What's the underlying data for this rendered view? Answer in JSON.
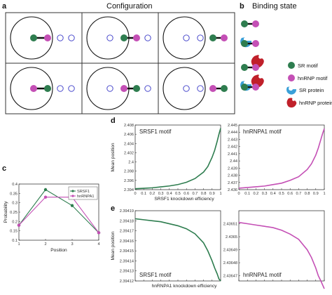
{
  "panels": {
    "a": {
      "letter": "a",
      "title": "Configuration"
    },
    "b": {
      "letter": "b",
      "title": "Binding state"
    },
    "c": {
      "letter": "c"
    },
    "d": {
      "letter": "d"
    },
    "e": {
      "letter": "e"
    }
  },
  "legend_b": {
    "sr_motif": "SR motif",
    "hnrnp_motif": "hnRNP motif",
    "sr_protein": "SR protein",
    "hnrnp_protein": "hnRNP protein"
  },
  "colors": {
    "sr": "#2e7d4f",
    "hnrnp": "#c44fb5",
    "sr_protein": "#3aa0d8",
    "hnrnp_protein": "#c0202a",
    "empty_site": "#3a3ac8",
    "frame": "#333333"
  },
  "chart_data": [
    {
      "id": "c",
      "type": "line",
      "title": "",
      "xlabel": "Position",
      "ylabel": "Probability",
      "x": [
        1,
        2,
        3,
        4
      ],
      "xticks": [
        "1",
        "2",
        "3",
        "4"
      ],
      "ylim": [
        0.1,
        0.4
      ],
      "yticks": [
        "0.1",
        "0.15",
        "0.2",
        "0.25",
        "0.3",
        "0.35",
        "0.4"
      ],
      "series": [
        {
          "name": "SRSF1",
          "values": [
            0.18,
            0.37,
            0.285,
            0.14
          ]
        },
        {
          "name": "hnRNPA1",
          "values": [
            0.18,
            0.33,
            0.33,
            0.14
          ]
        }
      ],
      "legend": "top-right"
    },
    {
      "id": "d-left",
      "type": "line",
      "inner_label": "SRSF1 motif",
      "ylabel": "Mean position",
      "xlabel": "SRSF1 knockdown efficiency",
      "xlim": [
        0,
        1
      ],
      "xticks": [
        "0",
        "0.1",
        "0.2",
        "0.3",
        "0.4",
        "0.5",
        "0.6",
        "0.7",
        "0.8",
        "0.9",
        "1"
      ],
      "ylim": [
        2.394,
        2.408
      ],
      "yticks": [
        "2.394",
        "2.396",
        "2.398",
        "2.4",
        "2.402",
        "2.404",
        "2.406",
        "2.408"
      ],
      "series": [
        {
          "x": [
            0,
            0.1,
            0.2,
            0.3,
            0.4,
            0.5,
            0.6,
            0.7,
            0.8,
            0.85,
            0.9,
            0.93,
            0.96,
            0.98,
            1.0
          ],
          "values": [
            2.3942,
            2.3943,
            2.3944,
            2.3946,
            2.3948,
            2.3951,
            2.3956,
            2.3964,
            2.3978,
            2.399,
            2.401,
            2.4025,
            2.4045,
            2.406,
            2.4073
          ]
        }
      ]
    },
    {
      "id": "d-right",
      "type": "line",
      "inner_label": "hnRNPA1 motif",
      "xlim": [
        0,
        1
      ],
      "xticks": [
        "0",
        "0.1",
        "0.2",
        "0.3",
        "0.4",
        "0.5",
        "0.6",
        "0.7",
        "0.8",
        "0.9",
        "1"
      ],
      "ylim": [
        2.436,
        2.445
      ],
      "yticks": [
        "2.436",
        "2.437",
        "2.438",
        "2.439",
        "2.44",
        "2.441",
        "2.442",
        "2.443",
        "2.444",
        "2.445"
      ],
      "series": [
        {
          "x": [
            0,
            0.1,
            0.2,
            0.3,
            0.4,
            0.5,
            0.6,
            0.7,
            0.8,
            0.85,
            0.9,
            0.93,
            0.96,
            0.98,
            1.0
          ],
          "values": [
            2.4362,
            2.4363,
            2.4364,
            2.4365,
            2.4367,
            2.4369,
            2.4373,
            2.4378,
            2.4388,
            2.4396,
            2.4408,
            2.4418,
            2.443,
            2.4438,
            2.4445
          ]
        }
      ]
    },
    {
      "id": "e-left",
      "type": "line",
      "inner_label": "SRSF1 motif",
      "ylabel": "Mean position",
      "xlabel": "hnRNPA1 knockdown efficiency",
      "xlim": [
        0,
        1
      ],
      "xticks": [
        "0",
        "0.1",
        "0.2",
        "0.3",
        "0.4",
        "0.5",
        "0.6",
        "0.7",
        "0.8",
        "0.9",
        "1"
      ],
      "ylim": [
        2.39412,
        2.39419
      ],
      "yticks": [
        "2.39412",
        "2.39413",
        "2.39414",
        "2.39415",
        "2.39416",
        "2.39417",
        "2.39418",
        "2.39419"
      ],
      "series": [
        {
          "x": [
            0,
            0.1,
            0.2,
            0.3,
            0.4,
            0.5,
            0.6,
            0.7,
            0.8,
            0.85,
            0.9,
            0.93,
            0.96,
            0.98,
            1.0
          ],
          "values": [
            2.394182,
            2.394181,
            2.39418,
            2.394179,
            2.394177,
            2.394175,
            2.394172,
            2.394167,
            2.394158,
            2.39415,
            2.39414,
            2.394133,
            2.394127,
            2.394122,
            2.39412
          ]
        }
      ]
    },
    {
      "id": "e-right",
      "type": "line",
      "inner_label": "hnRNPA1 motif",
      "xlim": [
        0,
        1
      ],
      "xticks": [
        "0",
        "0.1",
        "0.2",
        "0.3",
        "0.4",
        "0.5",
        "0.6",
        "0.7",
        "0.8",
        "0.9",
        "1"
      ],
      "ylim": [
        2.436466,
        2.43652
      ],
      "yticks": [
        "2.43647",
        "2.43648",
        "2.43649",
        "2.4365",
        "2.43651"
      ],
      "yticks_extra": [
        "2.436515",
        "2.436505",
        "2.436495",
        "2.436485",
        "2.436475"
      ],
      "series": [
        {
          "x": [
            0,
            0.1,
            0.2,
            0.3,
            0.4,
            0.5,
            0.6,
            0.7,
            0.8,
            0.85,
            0.9,
            0.93,
            0.96,
            0.98,
            1.0
          ],
          "values": [
            2.436511,
            2.43651,
            2.436509,
            2.436508,
            2.436507,
            2.436505,
            2.436502,
            2.436498,
            2.43649,
            2.436484,
            2.436476,
            2.43647,
            2.436466,
            2.436463,
            2.43646
          ]
        }
      ]
    }
  ]
}
